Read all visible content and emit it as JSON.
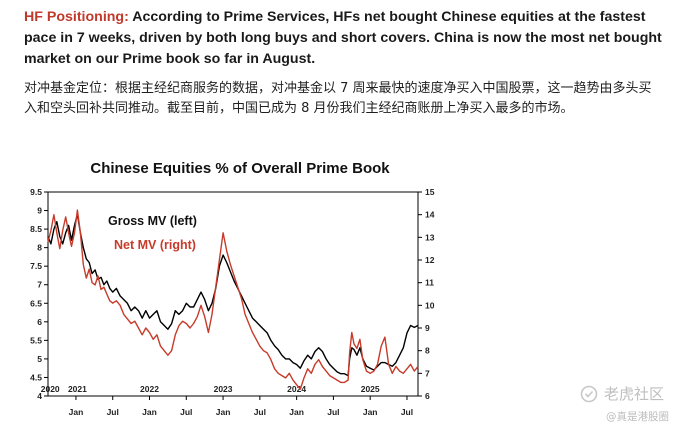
{
  "article": {
    "highlight": "HF Positioning:",
    "english_body": " According to Prime Services, HFs net bought Chinese equities at the fastest pace in 7 weeks, driven by both long buys and short covers. China is now the most net bought market on our Prime book so far in August.",
    "chinese_body": "对冲基金定位：根据主经纪商服务的数据，对冲基金以 7 周来最快的速度净买入中国股票，这一趋势由多头买入和空头回补共同推动。截至目前，中国已成为 8 月份我们主经纪商账册上净买入最多的市场。"
  },
  "chart_data": {
    "type": "line",
    "title": "Chinese Equities % of Overall Prime Book",
    "legend": [
      "Gross MV (left)",
      "Net MV (right)"
    ],
    "y_left": {
      "min": 4,
      "max": 9.5,
      "ticks": [
        "4",
        "4.5",
        "5",
        "5.5",
        "6",
        "6.5",
        "7",
        "7.5",
        "8",
        "8.5",
        "9",
        "9.5"
      ]
    },
    "y_right": {
      "min": 6,
      "max": 15,
      "ticks": [
        "6",
        "7",
        "8",
        "9",
        "10",
        "11",
        "12",
        "13",
        "14",
        "15"
      ]
    },
    "x_range": [
      2020.62,
      2025.65
    ],
    "years": [
      {
        "label": "2020",
        "x": 2020.65
      },
      {
        "label": "2021",
        "x": 2021.02
      },
      {
        "label": "2022",
        "x": 2022.0
      },
      {
        "label": "2023",
        "x": 2023.0
      },
      {
        "label": "2024",
        "x": 2024.0
      },
      {
        "label": "2025",
        "x": 2025.0
      }
    ],
    "months": [
      {
        "label": "Jan",
        "x": 2021.0
      },
      {
        "label": "Jul",
        "x": 2021.5
      },
      {
        "label": "Jan",
        "x": 2022.0
      },
      {
        "label": "Jul",
        "x": 2022.5
      },
      {
        "label": "Jan",
        "x": 2023.0
      },
      {
        "label": "Jul",
        "x": 2023.5
      },
      {
        "label": "Jan",
        "x": 2024.0
      },
      {
        "label": "Jul",
        "x": 2024.5
      },
      {
        "label": "Jan",
        "x": 2025.0
      },
      {
        "label": "Jul",
        "x": 2025.5
      }
    ],
    "series": [
      {
        "name": "Gross MV (left)",
        "axis": "left",
        "color": "#000000",
        "points": [
          [
            2020.62,
            8.3
          ],
          [
            2020.66,
            8.1
          ],
          [
            2020.7,
            8.5
          ],
          [
            2020.74,
            8.7
          ],
          [
            2020.78,
            8.3
          ],
          [
            2020.82,
            8.1
          ],
          [
            2020.86,
            8.4
          ],
          [
            2020.9,
            8.6
          ],
          [
            2020.94,
            8.2
          ],
          [
            2020.98,
            8.6
          ],
          [
            2021.02,
            8.9
          ],
          [
            2021.06,
            8.4
          ],
          [
            2021.1,
            8.0
          ],
          [
            2021.14,
            7.7
          ],
          [
            2021.18,
            7.6
          ],
          [
            2021.22,
            7.3
          ],
          [
            2021.26,
            7.4
          ],
          [
            2021.3,
            7.15
          ],
          [
            2021.34,
            7.2
          ],
          [
            2021.38,
            7.0
          ],
          [
            2021.42,
            7.1
          ],
          [
            2021.46,
            6.9
          ],
          [
            2021.5,
            6.8
          ],
          [
            2021.55,
            6.9
          ],
          [
            2021.6,
            6.7
          ],
          [
            2021.65,
            6.6
          ],
          [
            2021.7,
            6.5
          ],
          [
            2021.75,
            6.3
          ],
          [
            2021.8,
            6.4
          ],
          [
            2021.85,
            6.3
          ],
          [
            2021.9,
            6.1
          ],
          [
            2021.95,
            6.3
          ],
          [
            2022.0,
            6.1
          ],
          [
            2022.05,
            6.2
          ],
          [
            2022.1,
            6.3
          ],
          [
            2022.15,
            6.0
          ],
          [
            2022.2,
            5.9
          ],
          [
            2022.25,
            5.8
          ],
          [
            2022.3,
            5.95
          ],
          [
            2022.35,
            6.3
          ],
          [
            2022.4,
            6.2
          ],
          [
            2022.45,
            6.3
          ],
          [
            2022.5,
            6.5
          ],
          [
            2022.55,
            6.4
          ],
          [
            2022.6,
            6.4
          ],
          [
            2022.65,
            6.6
          ],
          [
            2022.7,
            6.8
          ],
          [
            2022.75,
            6.6
          ],
          [
            2022.8,
            6.3
          ],
          [
            2022.85,
            6.5
          ],
          [
            2022.9,
            6.9
          ],
          [
            2022.95,
            7.5
          ],
          [
            2023.0,
            7.8
          ],
          [
            2023.05,
            7.6
          ],
          [
            2023.1,
            7.35
          ],
          [
            2023.15,
            7.1
          ],
          [
            2023.2,
            6.9
          ],
          [
            2023.25,
            6.7
          ],
          [
            2023.3,
            6.5
          ],
          [
            2023.35,
            6.3
          ],
          [
            2023.4,
            6.1
          ],
          [
            2023.45,
            6.0
          ],
          [
            2023.5,
            5.9
          ],
          [
            2023.55,
            5.8
          ],
          [
            2023.6,
            5.7
          ],
          [
            2023.65,
            5.5
          ],
          [
            2023.7,
            5.35
          ],
          [
            2023.75,
            5.25
          ],
          [
            2023.8,
            5.1
          ],
          [
            2023.85,
            5.0
          ],
          [
            2023.9,
            5.0
          ],
          [
            2023.95,
            4.9
          ],
          [
            2024.0,
            4.85
          ],
          [
            2024.05,
            4.75
          ],
          [
            2024.1,
            4.95
          ],
          [
            2024.15,
            5.1
          ],
          [
            2024.2,
            5.0
          ],
          [
            2024.25,
            5.2
          ],
          [
            2024.3,
            5.3
          ],
          [
            2024.35,
            5.2
          ],
          [
            2024.4,
            5.0
          ],
          [
            2024.45,
            4.85
          ],
          [
            2024.5,
            4.75
          ],
          [
            2024.55,
            4.65
          ],
          [
            2024.6,
            4.6
          ],
          [
            2024.65,
            4.6
          ],
          [
            2024.7,
            4.55
          ],
          [
            2024.72,
            5.0
          ],
          [
            2024.75,
            5.3
          ],
          [
            2024.78,
            5.25
          ],
          [
            2024.82,
            5.1
          ],
          [
            2024.86,
            5.3
          ],
          [
            2024.9,
            5.0
          ],
          [
            2024.95,
            4.8
          ],
          [
            2025.0,
            4.75
          ],
          [
            2025.05,
            4.7
          ],
          [
            2025.1,
            4.8
          ],
          [
            2025.15,
            4.9
          ],
          [
            2025.2,
            4.9
          ],
          [
            2025.25,
            4.85
          ],
          [
            2025.3,
            4.8
          ],
          [
            2025.35,
            4.9
          ],
          [
            2025.4,
            5.1
          ],
          [
            2025.45,
            5.3
          ],
          [
            2025.5,
            5.7
          ],
          [
            2025.55,
            5.9
          ],
          [
            2025.6,
            5.85
          ],
          [
            2025.65,
            5.9
          ]
        ]
      },
      {
        "name": "Net MV (right)",
        "axis": "right",
        "color": "#c73b2a",
        "points": [
          [
            2020.62,
            12.8
          ],
          [
            2020.66,
            13.3
          ],
          [
            2020.7,
            14.0
          ],
          [
            2020.74,
            13.2
          ],
          [
            2020.78,
            12.5
          ],
          [
            2020.82,
            13.3
          ],
          [
            2020.86,
            13.9
          ],
          [
            2020.9,
            13.2
          ],
          [
            2020.94,
            12.6
          ],
          [
            2020.98,
            13.2
          ],
          [
            2021.02,
            14.2
          ],
          [
            2021.06,
            13.2
          ],
          [
            2021.1,
            11.8
          ],
          [
            2021.14,
            11.2
          ],
          [
            2021.18,
            11.6
          ],
          [
            2021.22,
            11.0
          ],
          [
            2021.26,
            10.9
          ],
          [
            2021.3,
            11.3
          ],
          [
            2021.34,
            10.7
          ],
          [
            2021.38,
            10.8
          ],
          [
            2021.42,
            10.5
          ],
          [
            2021.46,
            10.2
          ],
          [
            2021.5,
            10.1
          ],
          [
            2021.55,
            10.2
          ],
          [
            2021.6,
            10.0
          ],
          [
            2021.65,
            9.6
          ],
          [
            2021.7,
            9.4
          ],
          [
            2021.75,
            9.2
          ],
          [
            2021.8,
            9.3
          ],
          [
            2021.85,
            9.0
          ],
          [
            2021.9,
            8.7
          ],
          [
            2021.95,
            9.0
          ],
          [
            2022.0,
            8.8
          ],
          [
            2022.05,
            8.5
          ],
          [
            2022.1,
            8.7
          ],
          [
            2022.15,
            8.2
          ],
          [
            2022.2,
            8.0
          ],
          [
            2022.25,
            7.8
          ],
          [
            2022.3,
            8.0
          ],
          [
            2022.35,
            8.7
          ],
          [
            2022.4,
            9.1
          ],
          [
            2022.45,
            9.3
          ],
          [
            2022.5,
            9.2
          ],
          [
            2022.55,
            9.0
          ],
          [
            2022.6,
            9.2
          ],
          [
            2022.65,
            9.5
          ],
          [
            2022.7,
            10.0
          ],
          [
            2022.75,
            9.5
          ],
          [
            2022.8,
            8.8
          ],
          [
            2022.85,
            9.6
          ],
          [
            2022.9,
            10.8
          ],
          [
            2022.95,
            12.0
          ],
          [
            2023.0,
            13.2
          ],
          [
            2023.05,
            12.4
          ],
          [
            2023.1,
            11.8
          ],
          [
            2023.15,
            11.3
          ],
          [
            2023.2,
            10.8
          ],
          [
            2023.25,
            10.3
          ],
          [
            2023.3,
            9.6
          ],
          [
            2023.35,
            9.2
          ],
          [
            2023.4,
            8.8
          ],
          [
            2023.45,
            8.5
          ],
          [
            2023.5,
            8.2
          ],
          [
            2023.55,
            8.0
          ],
          [
            2023.6,
            7.9
          ],
          [
            2023.65,
            7.6
          ],
          [
            2023.7,
            7.2
          ],
          [
            2023.75,
            7.0
          ],
          [
            2023.8,
            6.9
          ],
          [
            2023.85,
            6.8
          ],
          [
            2023.9,
            7.0
          ],
          [
            2023.95,
            6.7
          ],
          [
            2024.0,
            6.5
          ],
          [
            2024.05,
            6.3
          ],
          [
            2024.1,
            6.8
          ],
          [
            2024.15,
            7.2
          ],
          [
            2024.2,
            7.0
          ],
          [
            2024.25,
            7.4
          ],
          [
            2024.3,
            7.6
          ],
          [
            2024.35,
            7.3
          ],
          [
            2024.4,
            7.1
          ],
          [
            2024.45,
            6.9
          ],
          [
            2024.5,
            6.8
          ],
          [
            2024.55,
            6.7
          ],
          [
            2024.6,
            6.6
          ],
          [
            2024.65,
            6.6
          ],
          [
            2024.7,
            6.7
          ],
          [
            2024.72,
            7.9
          ],
          [
            2024.75,
            8.8
          ],
          [
            2024.78,
            8.3
          ],
          [
            2024.82,
            8.1
          ],
          [
            2024.86,
            8.5
          ],
          [
            2024.9,
            7.6
          ],
          [
            2024.95,
            7.1
          ],
          [
            2025.0,
            7.0
          ],
          [
            2025.05,
            7.1
          ],
          [
            2025.1,
            7.4
          ],
          [
            2025.15,
            8.2
          ],
          [
            2025.2,
            8.6
          ],
          [
            2025.25,
            7.4
          ],
          [
            2025.3,
            7.0
          ],
          [
            2025.35,
            7.3
          ],
          [
            2025.4,
            7.1
          ],
          [
            2025.45,
            7.0
          ],
          [
            2025.5,
            7.2
          ],
          [
            2025.55,
            7.4
          ],
          [
            2025.6,
            7.1
          ],
          [
            2025.65,
            7.3
          ]
        ]
      }
    ]
  },
  "watermark": {
    "main": "老虎社区",
    "sub": "@真是港股圈"
  }
}
